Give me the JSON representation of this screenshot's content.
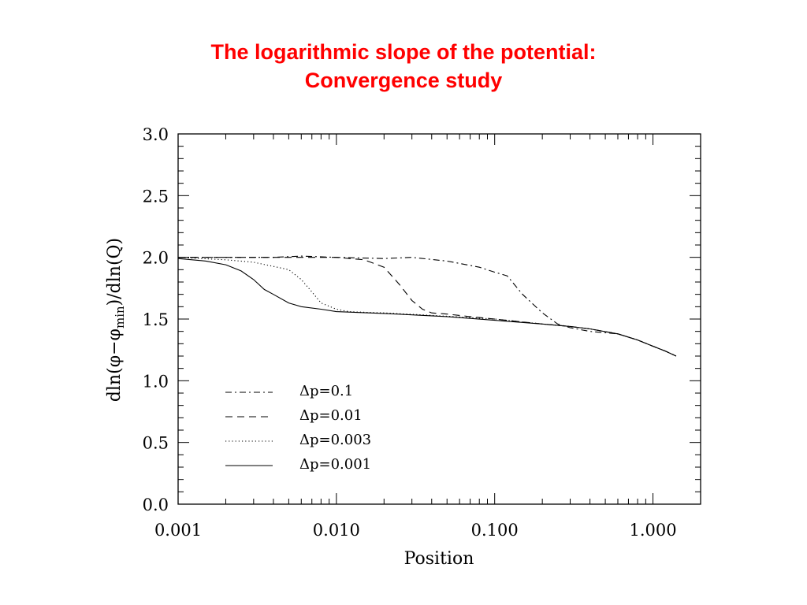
{
  "title": {
    "line1": "The logarithmic slope of the potential:",
    "line2": "Convergence study"
  },
  "colors": {
    "title": "#ff0000",
    "ink": "#000000",
    "background": "#ffffff"
  },
  "chart_data": {
    "type": "line",
    "xlabel": "Position",
    "ylabel": "dln(φ−φmin)/dln(Q)",
    "x_scale": "log",
    "xlim": [
      0.001,
      2.0
    ],
    "ylim": [
      0.0,
      3.0
    ],
    "x_tick_labels": [
      "0.001",
      "0.010",
      "0.100",
      "1.000"
    ],
    "x_tick_values": [
      0.001,
      0.01,
      0.1,
      1.0
    ],
    "y_tick_labels": [
      "0.0",
      "0.5",
      "1.0",
      "1.5",
      "2.0",
      "2.5",
      "3.0"
    ],
    "y_tick_values": [
      0.0,
      0.5,
      1.0,
      1.5,
      2.0,
      2.5,
      3.0
    ],
    "grid": false,
    "legend_position": "bottom-left",
    "series": [
      {
        "name": "Δp=0.1",
        "style": "dash-dot",
        "x": [
          0.001,
          0.002,
          0.004,
          0.006,
          0.01,
          0.02,
          0.03,
          0.05,
          0.08,
          0.1,
          0.12,
          0.15,
          0.2,
          0.25,
          0.3,
          0.4,
          0.6,
          0.8,
          1.0,
          1.2,
          1.4
        ],
        "y": [
          2.0,
          2.0,
          2.0,
          2.01,
          2.0,
          1.99,
          2.0,
          1.97,
          1.92,
          1.88,
          1.85,
          1.7,
          1.55,
          1.46,
          1.43,
          1.4,
          1.38,
          1.33,
          1.28,
          1.24,
          1.2
        ]
      },
      {
        "name": "Δp=0.01",
        "style": "dashed",
        "x": [
          0.001,
          0.003,
          0.006,
          0.01,
          0.015,
          0.02,
          0.025,
          0.03,
          0.035,
          0.04,
          0.05,
          0.07,
          0.1,
          0.2,
          0.3,
          0.4,
          0.6,
          0.8,
          1.0,
          1.2,
          1.4
        ],
        "y": [
          2.0,
          2.0,
          2.0,
          2.0,
          1.98,
          1.92,
          1.78,
          1.65,
          1.58,
          1.55,
          1.54,
          1.52,
          1.5,
          1.46,
          1.44,
          1.42,
          1.38,
          1.33,
          1.28,
          1.24,
          1.2
        ]
      },
      {
        "name": "Δp=0.003",
        "style": "dotted",
        "x": [
          0.001,
          0.002,
          0.003,
          0.005,
          0.006,
          0.007,
          0.008,
          0.01,
          0.012,
          0.015,
          0.02,
          0.04,
          0.1,
          0.2,
          0.3,
          0.4,
          0.6,
          0.8,
          1.0,
          1.2,
          1.4
        ],
        "y": [
          2.0,
          1.98,
          1.96,
          1.9,
          1.82,
          1.72,
          1.63,
          1.58,
          1.56,
          1.555,
          1.55,
          1.53,
          1.5,
          1.46,
          1.44,
          1.42,
          1.38,
          1.33,
          1.28,
          1.24,
          1.2
        ]
      },
      {
        "name": "Δp=0.001",
        "style": "solid",
        "x": [
          0.001,
          0.0015,
          0.002,
          0.0025,
          0.003,
          0.0035,
          0.004,
          0.005,
          0.006,
          0.008,
          0.01,
          0.02,
          0.05,
          0.1,
          0.2,
          0.3,
          0.4,
          0.6,
          0.8,
          1.0,
          1.2,
          1.4
        ],
        "y": [
          1.99,
          1.97,
          1.94,
          1.89,
          1.82,
          1.74,
          1.7,
          1.63,
          1.6,
          1.58,
          1.56,
          1.545,
          1.52,
          1.49,
          1.46,
          1.44,
          1.42,
          1.38,
          1.33,
          1.28,
          1.24,
          1.2
        ]
      }
    ]
  }
}
